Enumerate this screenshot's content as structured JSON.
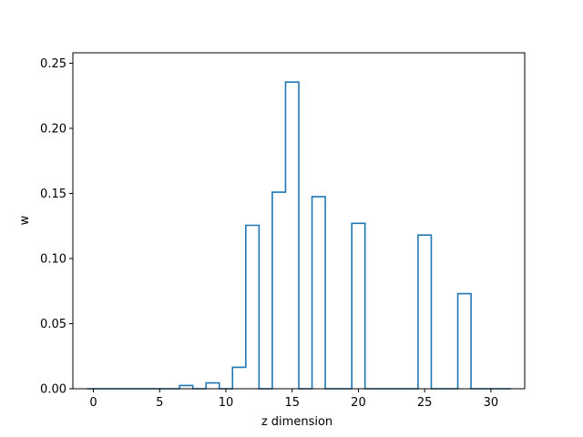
{
  "chart_data": {
    "type": "bar",
    "style": "step-histogram",
    "xlabel": "z dimension",
    "ylabel": "w",
    "xlim": [
      -1.55,
      32.55
    ],
    "ylim": [
      0,
      0.258
    ],
    "grid": false,
    "color": "#1f77b4",
    "x": [
      0,
      1,
      2,
      3,
      4,
      5,
      6,
      7,
      8,
      9,
      10,
      11,
      12,
      13,
      14,
      15,
      16,
      17,
      18,
      19,
      20,
      21,
      22,
      23,
      24,
      25,
      26,
      27,
      28,
      29,
      30,
      31
    ],
    "values": [
      0,
      0,
      0,
      0,
      0,
      0,
      0,
      0.0025,
      0,
      0.0045,
      0,
      0.0165,
      0.1255,
      0,
      0.151,
      0.2355,
      0,
      0.1475,
      0,
      0,
      0.127,
      0,
      0,
      0,
      0,
      0.118,
      0,
      0,
      0.073,
      0,
      0,
      0
    ],
    "xticks": [
      0,
      5,
      10,
      15,
      20,
      25,
      30
    ],
    "xtick_labels": [
      "0",
      "5",
      "10",
      "15",
      "20",
      "25",
      "30"
    ],
    "yticks": [
      0,
      0.05,
      0.1,
      0.15,
      0.2,
      0.25
    ],
    "ytick_labels": [
      "0.00",
      "0.05",
      "0.10",
      "0.15",
      "0.20",
      "0.25"
    ]
  }
}
